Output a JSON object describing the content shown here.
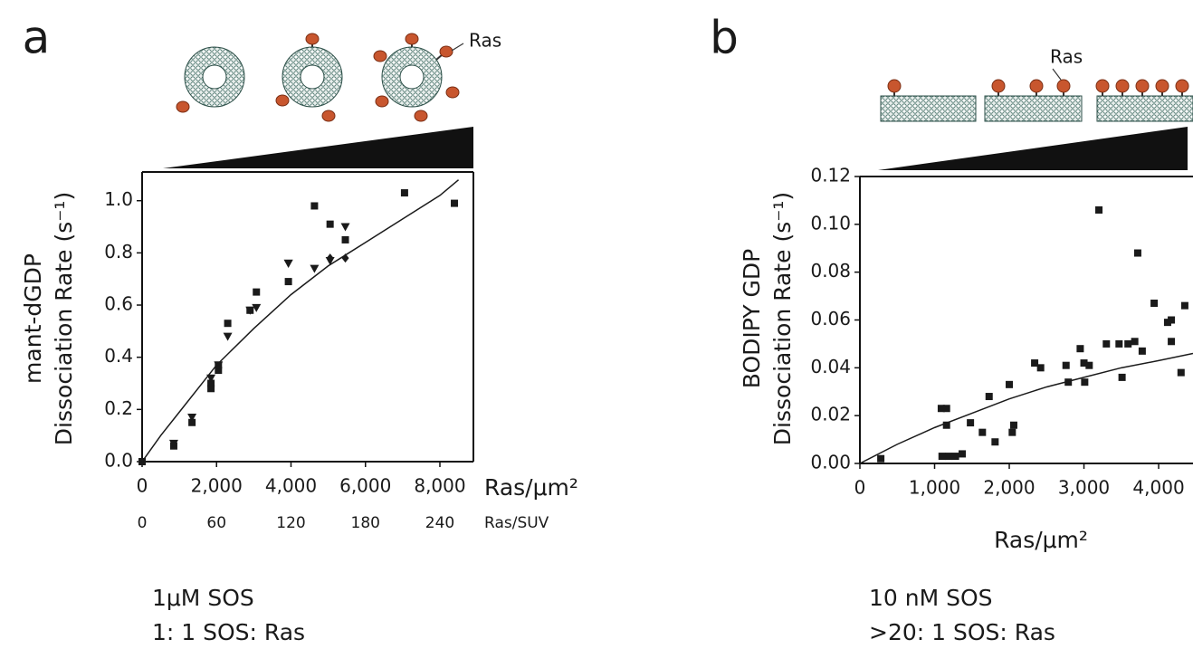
{
  "chart_data": [
    {
      "type": "scatter",
      "panel_label": "a",
      "illustration_label": "Ras",
      "x_label": "Ras/μm²",
      "y_label": [
        "mant-dGDP",
        "Dissociation Rate (s⁻¹)"
      ],
      "x2_label": "Ras/SUV",
      "conditions": [
        "1μM SOS",
        "1: 1 SOS: Ras"
      ],
      "xlim": [
        0,
        8900
      ],
      "ylim": [
        0,
        1.11
      ],
      "xticks": [
        0,
        {
          "value": 2000,
          "label": "2,000"
        },
        {
          "value": 4000,
          "label": "4,000"
        },
        {
          "value": 6000,
          "label": "6,000"
        },
        {
          "value": 8000,
          "label": "8,000"
        }
      ],
      "yticks": [
        {
          "value": 0,
          "label": "0.0"
        },
        0.2,
        0.4,
        0.6,
        0.8,
        {
          "value": 1,
          "label": "1.0"
        }
      ],
      "x2lim": [
        0,
        267
      ],
      "x2ticks": [
        0,
        60,
        120,
        180,
        240
      ],
      "color": "#1a1a1a",
      "series": [
        {
          "marker": "square",
          "x": [
            0,
            850,
            1340,
            1850,
            1850,
            2050,
            2050,
            2300,
            2900,
            3070,
            3930,
            4630,
            5050,
            5460,
            7050,
            8390
          ],
          "y": [
            0,
            0.06,
            0.15,
            0.28,
            0.3,
            0.35,
            0.37,
            0.53,
            0.58,
            0.65,
            0.69,
            0.98,
            0.91,
            0.85,
            1.03,
            0.99
          ]
        },
        {
          "marker": "triangle",
          "x": [
            850,
            1340,
            1850,
            2050,
            2300,
            2900,
            3070,
            3930,
            3930,
            4630,
            5050,
            5460
          ],
          "y": [
            0.07,
            0.17,
            0.32,
            0.37,
            0.48,
            0.58,
            0.59,
            0.76,
            0.76,
            0.74,
            0.77,
            0.9
          ]
        },
        {
          "marker": "diamond",
          "x": [
            5050,
            5460
          ],
          "y": [
            0.78,
            0.78
          ]
        },
        {
          "marker": "line",
          "x": [
            0,
            500,
            1000,
            2000,
            3000,
            4000,
            5000,
            6000,
            7000,
            8000,
            8500
          ],
          "y": [
            0,
            0.1,
            0.19,
            0.37,
            0.51,
            0.64,
            0.75,
            0.84,
            0.93,
            1.02,
            1.08
          ]
        }
      ]
    },
    {
      "type": "scatter",
      "panel_label": "b",
      "illustration_label": "Ras",
      "x_label": "Ras/μm²",
      "y_label": [
        "BODIPY GDP",
        "Dissociation Rate (s⁻¹)"
      ],
      "conditions": [
        "10 nM SOS",
        ">20: 1 SOS: Ras"
      ],
      "xlim": [
        0,
        4460
      ],
      "ylim": [
        0,
        0.12
      ],
      "xticks": [
        0,
        {
          "value": 1000,
          "label": "1,000"
        },
        {
          "value": 2000,
          "label": "2,000"
        },
        {
          "value": 3000,
          "label": "3,000"
        },
        {
          "value": 4000,
          "label": "4,000"
        }
      ],
      "yticks": [
        {
          "value": 0,
          "label": "0.00"
        },
        {
          "value": 0.02,
          "label": "0.02"
        },
        {
          "value": 0.04,
          "label": "0.04"
        },
        {
          "value": 0.06,
          "label": "0.06"
        },
        {
          "value": 0.08,
          "label": "0.08"
        },
        {
          "value": 0.1,
          "label": "0.10"
        },
        {
          "value": 0.12,
          "label": "0.12"
        }
      ],
      "color": "#1a1a1a",
      "series": [
        {
          "marker": "square",
          "x": [
            280,
            1090,
            1160,
            1160,
            1100,
            1190,
            1280,
            1370,
            1480,
            1640,
            1730,
            1810,
            2000,
            2040,
            2060,
            2340,
            2420,
            2760,
            2790,
            2950,
            3000,
            3070,
            3010,
            3200,
            3300,
            3470,
            3510,
            3590,
            3680,
            3720,
            3780,
            3940,
            4120,
            4170,
            4170,
            4300,
            4350
          ],
          "y": [
            0.002,
            0.023,
            0.023,
            0.016,
            0.003,
            0.003,
            0.003,
            0.004,
            0.017,
            0.013,
            0.028,
            0.009,
            0.033,
            0.013,
            0.016,
            0.042,
            0.04,
            0.041,
            0.034,
            0.048,
            0.042,
            0.041,
            0.034,
            0.106,
            0.05,
            0.05,
            0.036,
            0.05,
            0.051,
            0.088,
            0.047,
            0.067,
            0.059,
            0.06,
            0.051,
            0.038,
            0.066
          ]
        },
        {
          "marker": "line",
          "x": [
            0,
            500,
            1000,
            1500,
            2000,
            2500,
            3000,
            3500,
            4000,
            4460
          ],
          "y": [
            0,
            0.008,
            0.015,
            0.021,
            0.027,
            0.032,
            0.036,
            0.04,
            0.043,
            0.046
          ]
        }
      ]
    }
  ]
}
